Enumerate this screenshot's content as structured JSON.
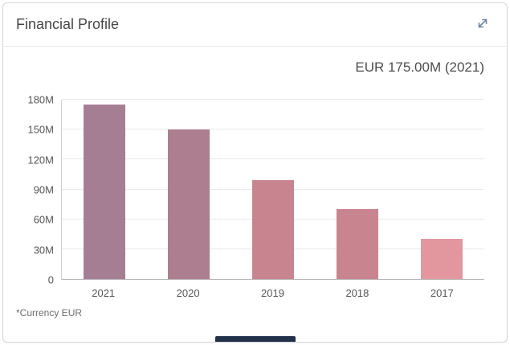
{
  "card": {
    "title": "Financial Profile",
    "value_label": "EUR 175.00M (2021)",
    "footnote": "*Currency EUR",
    "expand_icon": "expand-arrows-icon",
    "expand_icon_color": "#6e84a3"
  },
  "chart_data": {
    "type": "bar",
    "title": "Financial Profile",
    "categories": [
      "2021",
      "2020",
      "2019",
      "2018",
      "2017"
    ],
    "values": [
      175,
      150,
      99,
      70,
      40
    ],
    "unit": "EUR M",
    "xlabel": "",
    "ylabel": "",
    "ylim": [
      0,
      180
    ],
    "grid": true,
    "legend": "none",
    "yticks": [
      {
        "value": 0,
        "label": "0"
      },
      {
        "value": 30,
        "label": "30M"
      },
      {
        "value": 60,
        "label": "60M"
      },
      {
        "value": 90,
        "label": "90M"
      },
      {
        "value": 120,
        "label": "120M"
      },
      {
        "value": 150,
        "label": "150M"
      },
      {
        "value": 180,
        "label": "180M"
      }
    ],
    "bar_colors": [
      "#a67e94",
      "#ad7d90",
      "#c8848f",
      "#c8848f",
      "#e2979f"
    ]
  },
  "bottom_bar": {
    "color": "#22304a"
  }
}
